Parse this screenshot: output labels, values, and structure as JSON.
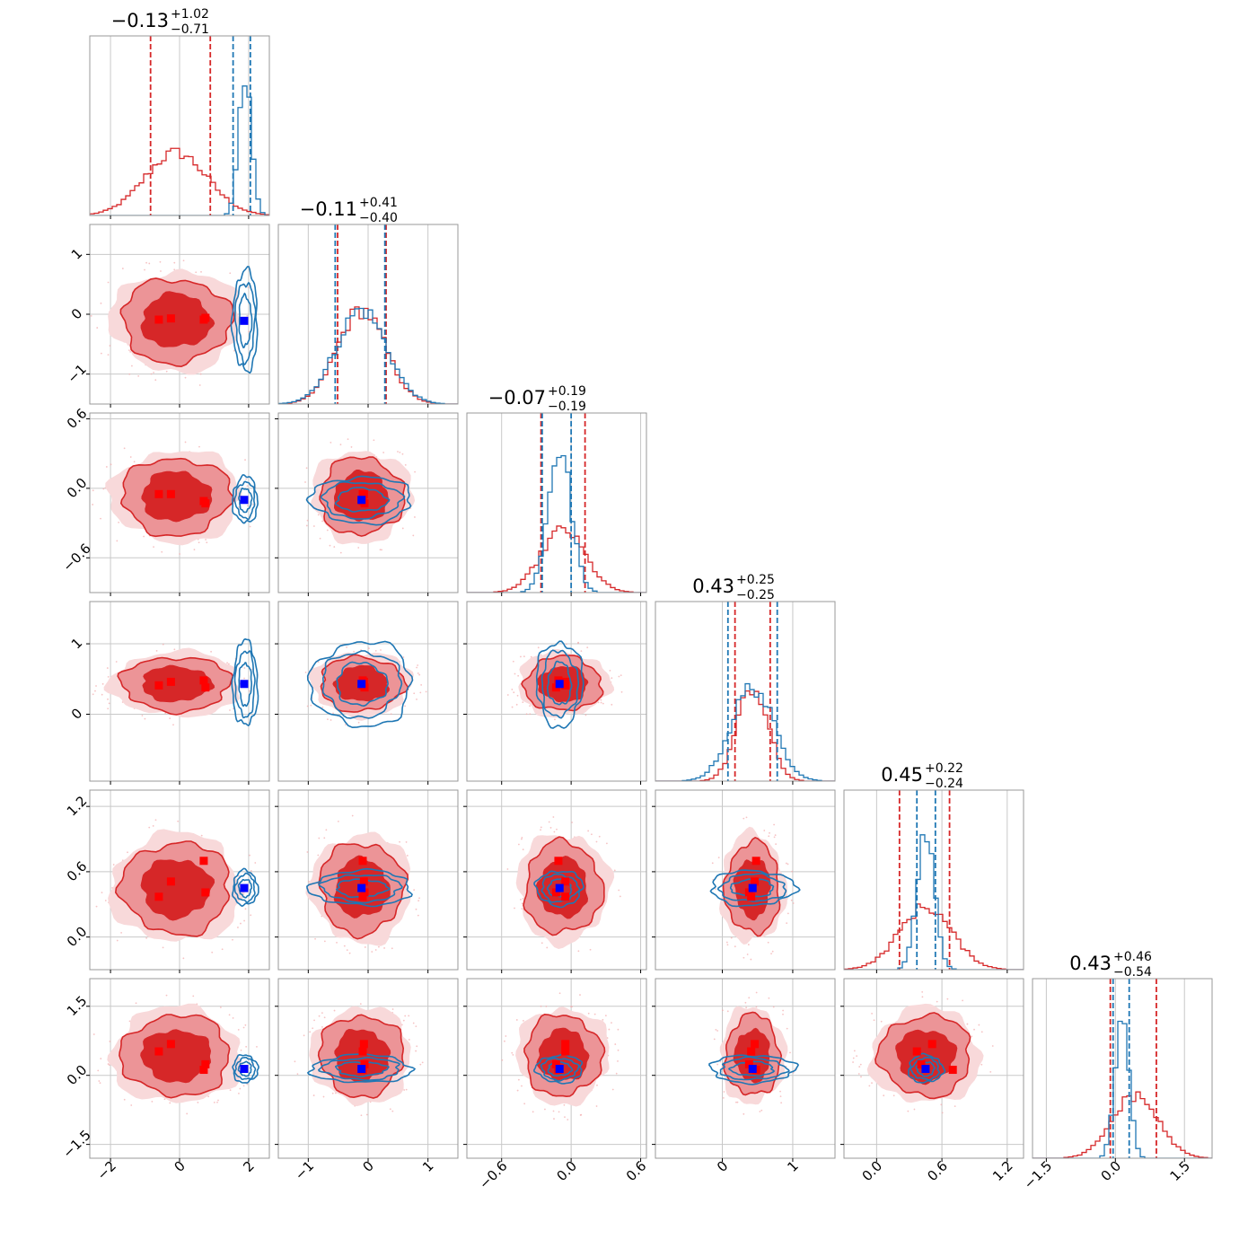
{
  "colors": {
    "red": "#d62728",
    "red_mid": "#ec9497",
    "red_light": "#f8d9da",
    "blue": "#1f77b4",
    "marker_red": "#ff0000",
    "marker_blue": "#0000ff",
    "grid": "#c8c8c8",
    "frame": "#999999"
  },
  "chart_data": {
    "type": "corner",
    "parameters": [
      {
        "title": "−0.13",
        "plus": "+1.02",
        "minus": "−0.71",
        "range": [
          -2.6,
          2.6
        ],
        "ticks": [
          -2,
          0,
          2
        ],
        "tick_labels": [
          "−2",
          "0",
          "2"
        ],
        "red": {
          "mean": -0.1,
          "sd": 0.9,
          "q16": -0.84,
          "q84": 0.89
        },
        "blue": {
          "mean": 1.9,
          "sd": 0.18,
          "q16": 1.55,
          "q84": 2.05
        }
      },
      {
        "title": "−0.11",
        "plus": "+0.41",
        "minus": "−0.40",
        "range": [
          -1.5,
          1.5
        ],
        "ticks": [
          -1,
          0,
          1
        ],
        "tick_labels": [
          "−1",
          "0",
          "1"
        ],
        "red": {
          "mean": -0.11,
          "sd": 0.4,
          "q16": -0.51,
          "q84": 0.3
        },
        "blue": {
          "mean": -0.11,
          "sd": 0.42,
          "q16": -0.55,
          "q84": 0.28
        }
      },
      {
        "title": "−0.07",
        "plus": "+0.19",
        "minus": "−0.19",
        "range": [
          -0.9,
          0.65
        ],
        "ticks": [
          -0.6,
          0.0,
          0.6
        ],
        "tick_labels": [
          "−0.6",
          "0.0",
          "0.6"
        ],
        "red": {
          "mean": -0.07,
          "sd": 0.19,
          "q16": -0.26,
          "q84": 0.12
        },
        "blue": {
          "mean": -0.1,
          "sd": 0.1,
          "q16": -0.25,
          "q84": 0.0
        }
      },
      {
        "title": "0.43",
        "plus": "+0.25",
        "minus": "−0.25",
        "range": [
          -0.95,
          1.6
        ],
        "ticks": [
          0,
          1
        ],
        "tick_labels": [
          "0",
          "1"
        ],
        "red": {
          "mean": 0.43,
          "sd": 0.22,
          "q16": 0.18,
          "q84": 0.68
        },
        "blue": {
          "mean": 0.43,
          "sd": 0.3,
          "q16": 0.08,
          "q84": 0.78
        }
      },
      {
        "title": "0.45",
        "plus": "+0.22",
        "minus": "−0.24",
        "range": [
          -0.3,
          1.35
        ],
        "ticks": [
          0.0,
          0.6,
          1.2
        ],
        "tick_labels": [
          "0.0",
          "0.6",
          "1.2"
        ],
        "red": {
          "mean": 0.45,
          "sd": 0.24,
          "q16": 0.21,
          "q84": 0.67
        },
        "blue": {
          "mean": 0.45,
          "sd": 0.08,
          "q16": 0.37,
          "q84": 0.54
        }
      },
      {
        "title": "0.43",
        "plus": "+0.46",
        "minus": "−0.54",
        "range": [
          -1.8,
          2.1
        ],
        "ticks": [
          -1.5,
          0.0,
          1.5
        ],
        "tick_labels": [
          "−1.5",
          "0.0",
          "1.5"
        ],
        "red": {
          "mean": 0.43,
          "sd": 0.5,
          "q16": -0.11,
          "q84": 0.89
        },
        "blue": {
          "mean": 0.14,
          "sd": 0.15,
          "q16": -0.05,
          "q84": 0.3
        }
      }
    ],
    "blue_markers": [
      1.87,
      -0.11,
      -0.1,
      0.43,
      0.45,
      0.14
    ],
    "red_markers": [
      [
        -0.6,
        -0.09,
        -0.05,
        0.41,
        0.37,
        0.52
      ],
      [
        -0.25,
        -0.07,
        -0.05,
        0.46,
        0.51,
        0.68
      ],
      [
        0.7,
        -0.09,
        -0.11,
        0.48,
        0.7,
        0.12
      ],
      [
        0.75,
        -0.06,
        -0.13,
        0.38,
        0.41,
        0.24
      ]
    ]
  }
}
